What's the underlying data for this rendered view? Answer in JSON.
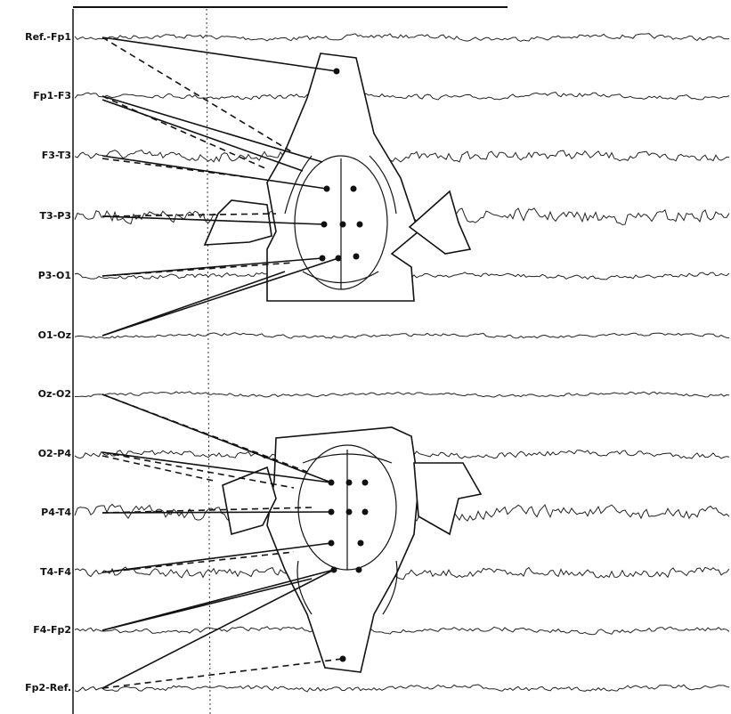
{
  "channels": [
    "Ref.-Fp1",
    "Fp1-F3",
    "F3-T3",
    "T3-P3",
    "P3-O1",
    "O1-Oz",
    "Oz-O2",
    "O2-P4",
    "P4-T4",
    "T4-F4",
    "F4-Fp2",
    "Fp2-Ref."
  ]
}
